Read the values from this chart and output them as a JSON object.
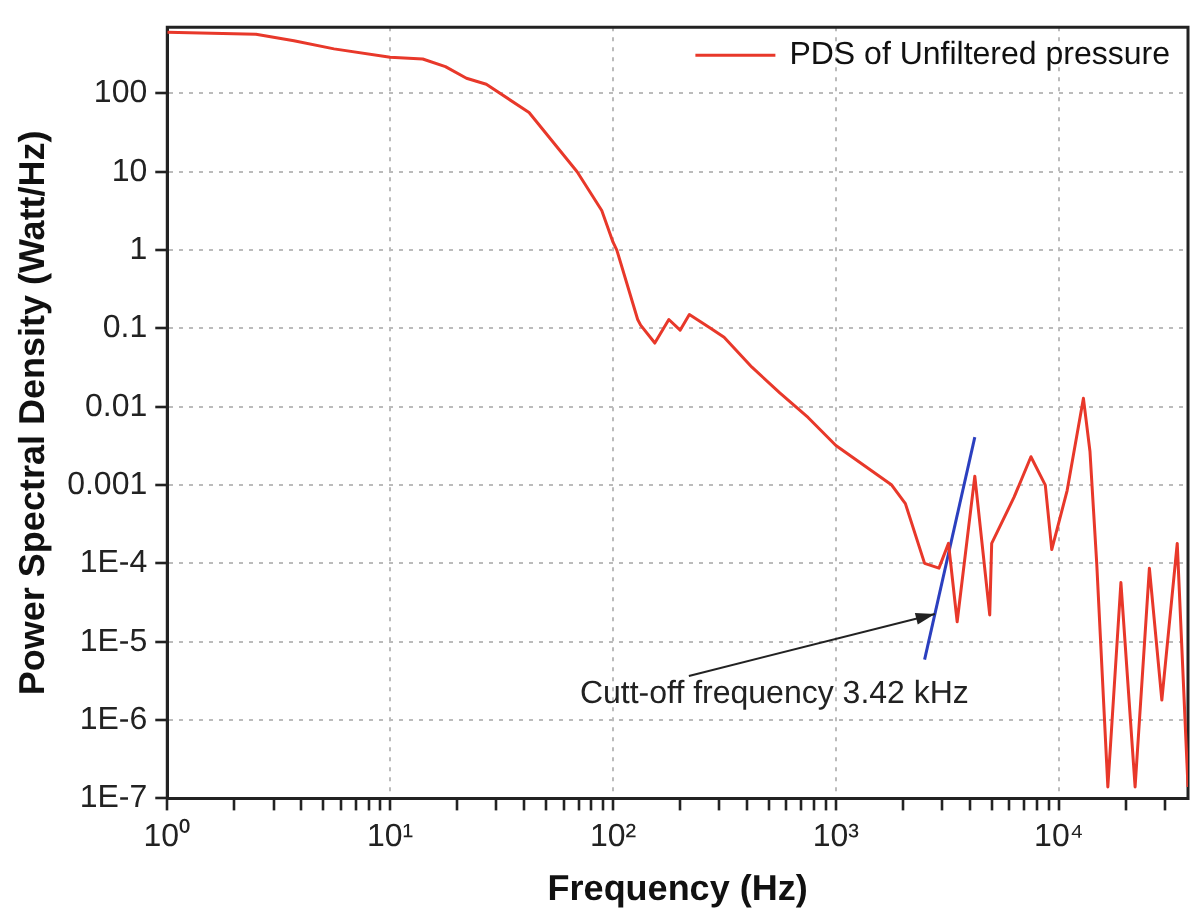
{
  "chart_data": {
    "type": "line",
    "xlabel": "Frequency (Hz)",
    "ylabel": "Power Spectral Density (Watt/Hz)",
    "log": "xy",
    "grid": true,
    "legend": "top right",
    "line_style": "solid",
    "marker": "none",
    "xlim": [
      1,
      38000
    ],
    "ylim": [
      1e-07,
      700
    ],
    "xticks": [
      {
        "value": 1,
        "label": "10⁰"
      },
      {
        "value": 2,
        "label": null
      },
      {
        "value": 3,
        "label": null
      },
      {
        "value": 4,
        "label": null
      },
      {
        "value": 5,
        "label": null
      },
      {
        "value": 6,
        "label": null
      },
      {
        "value": 7,
        "label": null
      },
      {
        "value": 8,
        "label": null
      },
      {
        "value": 9,
        "label": null
      },
      {
        "value": 10,
        "label": "10¹"
      },
      {
        "value": 20,
        "label": null
      },
      {
        "value": 30,
        "label": null
      },
      {
        "value": 40,
        "label": null
      },
      {
        "value": 50,
        "label": null
      },
      {
        "value": 60,
        "label": null
      },
      {
        "value": 70,
        "label": null
      },
      {
        "value": 80,
        "label": null
      },
      {
        "value": 90,
        "label": null
      },
      {
        "value": 100,
        "label": "10²"
      },
      {
        "value": 200,
        "label": null
      },
      {
        "value": 300,
        "label": null
      },
      {
        "value": 400,
        "label": null
      },
      {
        "value": 500,
        "label": null
      },
      {
        "value": 600,
        "label": null
      },
      {
        "value": 700,
        "label": null
      },
      {
        "value": 800,
        "label": null
      },
      {
        "value": 900,
        "label": null
      },
      {
        "value": 1000,
        "label": "10³"
      },
      {
        "value": 2000,
        "label": null
      },
      {
        "value": 3000,
        "label": null
      },
      {
        "value": 4000,
        "label": null
      },
      {
        "value": 5000,
        "label": null
      },
      {
        "value": 6000,
        "label": null
      },
      {
        "value": 7000,
        "label": null
      },
      {
        "value": 8000,
        "label": null
      },
      {
        "value": 9000,
        "label": null
      },
      {
        "value": 10000,
        "label": "10⁴"
      },
      {
        "value": 20000,
        "label": null
      },
      {
        "value": 30000,
        "label": null
      }
    ],
    "yticks": [
      {
        "value": 1e-07,
        "label": "1E-7"
      },
      {
        "value": 1e-06,
        "label": "1E-6"
      },
      {
        "value": 1e-05,
        "label": "1E-5"
      },
      {
        "value": 0.0001,
        "label": "1E-4"
      },
      0.001,
      0.01,
      0.1,
      1,
      10,
      100
    ],
    "series": [
      {
        "name": "PDS of Unfiltered pressure",
        "color": "#e8382a",
        "x": [
          1,
          2.5,
          3.7,
          5.6,
          10,
          14,
          17.7,
          22,
          27,
          42,
          69,
          89,
          100,
          104,
          129,
          133,
          154,
          178,
          200,
          220,
          275,
          315,
          420,
          560,
          750,
          1000,
          1780,
          2050,
          2500,
          2900,
          3200,
          3500,
          4200,
          4900,
          5000,
          6300,
          7500,
          8700,
          9300,
          10900,
          12900,
          13800,
          14800,
          16600,
          19000,
          22000,
          25500,
          29000,
          34000,
          38000
        ],
        "values": [
          605,
          570,
          470,
          370,
          290,
          275,
          220,
          156,
          131,
          57,
          10,
          3.2,
          1.26,
          1.0,
          0.13,
          0.11,
          0.065,
          0.13,
          0.095,
          0.15,
          0.1,
          0.077,
          0.032,
          0.015,
          0.0073,
          0.0032,
          0.001,
          0.00058,
          0.0001,
          8.7e-05,
          0.00018,
          1.8e-05,
          0.0013,
          2.2e-05,
          0.00018,
          0.0007,
          0.0023,
          0.001,
          0.00015,
          0.00085,
          0.0128,
          0.0027,
          0.0001,
          1.4e-07,
          5.7e-05,
          1.4e-07,
          8.7e-05,
          1.8e-06,
          0.00018,
          1.4e-07
        ]
      },
      {
        "color": "#2b3fbf",
        "x": [
          2500,
          4200
        ],
        "values": [
          5.9e-06,
          0.0041
        ]
      }
    ],
    "annotations": [
      {
        "text": "Cutt-off frequency 3.42 kHz",
        "x": 2780,
        "y": 2.26e-05
      }
    ]
  }
}
